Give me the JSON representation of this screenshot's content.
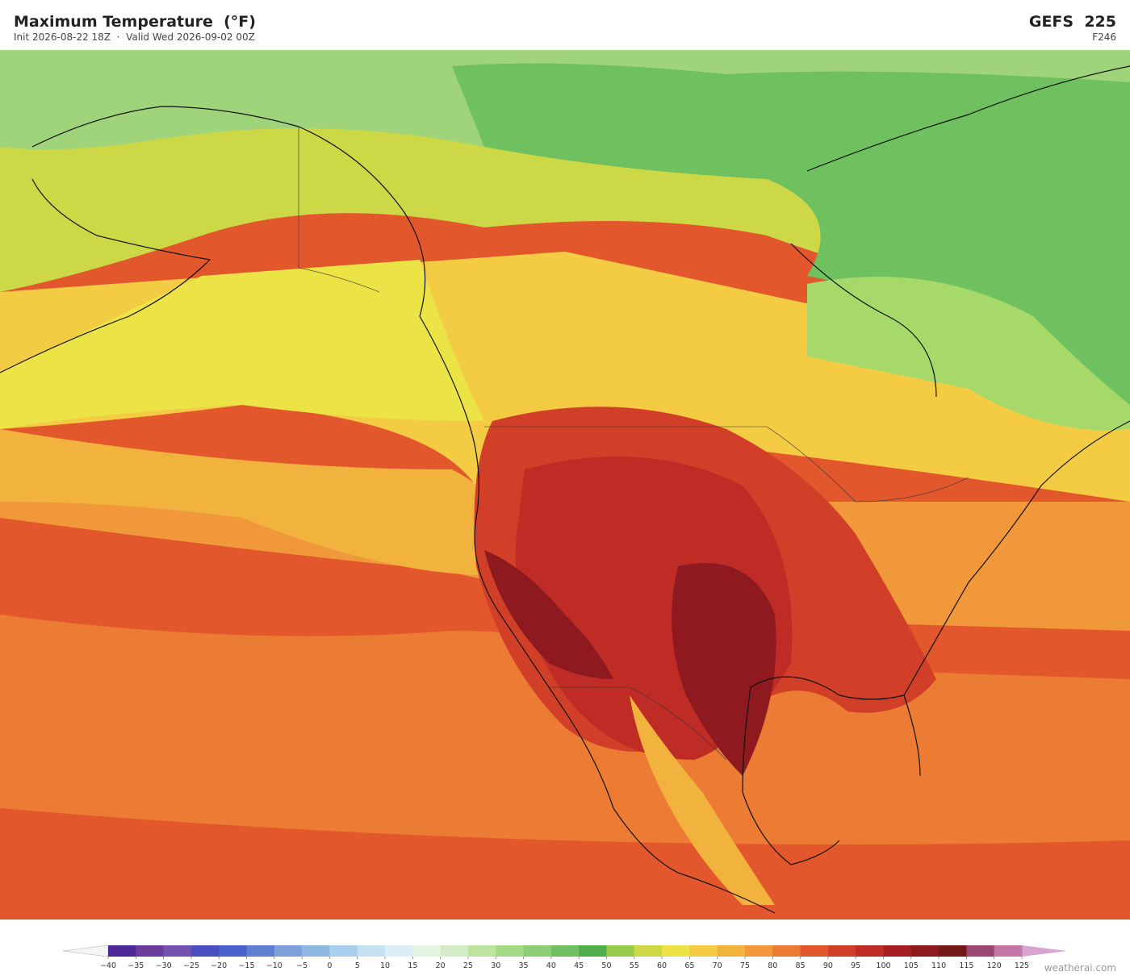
{
  "header": {
    "title": "Maximum Temperature  (°F)",
    "subtitle": "Init 2026-08-22 18Z  ·  Valid Wed 2026-09-02 00Z",
    "model": "GEFS  225",
    "forecast_hour": "F246"
  },
  "colorbar": {
    "ticks": [
      {
        "value": -40,
        "label": "−40"
      },
      {
        "value": -35,
        "label": "−35"
      },
      {
        "value": -30,
        "label": "−30"
      },
      {
        "value": -25,
        "label": "−25"
      },
      {
        "value": -20,
        "label": "−20"
      },
      {
        "value": -15,
        "label": "−15"
      },
      {
        "value": -10,
        "label": "−10"
      },
      {
        "value": -5,
        "label": "−5"
      },
      0,
      5,
      10,
      15,
      20,
      25,
      30,
      35,
      40,
      45,
      50,
      55,
      60,
      65,
      70,
      75,
      80,
      85,
      90,
      95,
      100,
      105,
      110,
      115,
      120,
      125
    ],
    "colors": [
      "#4b2a98",
      "#6a3d9a",
      "#7552b0",
      "#4a4fc0",
      "#4a60cc",
      "#5f7fd0",
      "#7da1d8",
      "#8fb8e0",
      "#a8d0ec",
      "#c5e2f0",
      "#dbeef3",
      "#e6f4e4",
      "#d3ecc6",
      "#bde3a0",
      "#a6db86",
      "#8ccf72",
      "#6fc05e",
      "#4fae4a",
      "#9acc4c",
      "#cdd847",
      "#ece447",
      "#f3cc44",
      "#f2b33e",
      "#f1983a",
      "#ec7b33",
      "#e2582c",
      "#d23f29",
      "#be2c25",
      "#a61f22",
      "#8e1a1f",
      "#741819",
      "#9a4870",
      "#c478a8"
    ],
    "under_color": "#f4f4f4",
    "over_color": "#d9a3d0"
  },
  "watermark": "weatherai.com"
}
